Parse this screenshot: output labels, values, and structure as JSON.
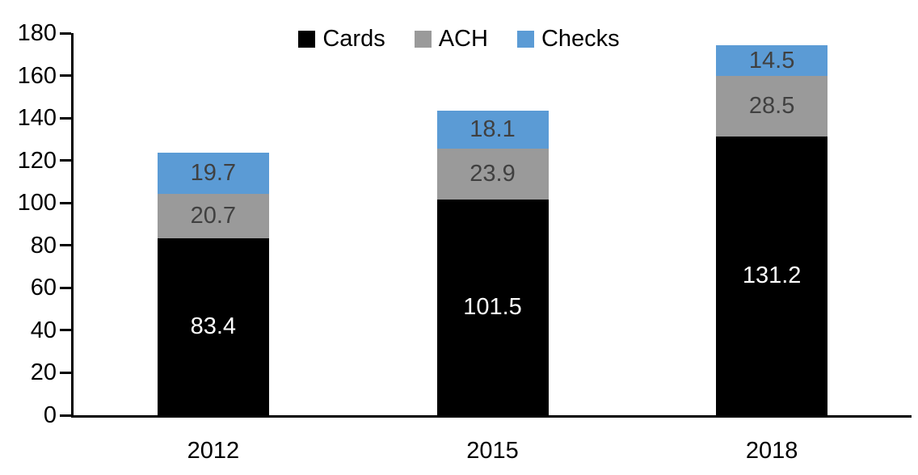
{
  "chart_data": {
    "type": "bar",
    "stacked": true,
    "title": "",
    "categories": [
      "2012",
      "2015",
      "2018"
    ],
    "series": [
      {
        "name": "Cards",
        "color": "#000000",
        "label_color": "#ffffff",
        "values": [
          83.4,
          101.5,
          131.2
        ]
      },
      {
        "name": "ACH",
        "color": "#9a9a9a",
        "label_color": "#404040",
        "values": [
          20.7,
          23.9,
          28.5
        ]
      },
      {
        "name": "Checks",
        "color": "#5b9bd5",
        "label_color": "#404040",
        "values": [
          19.7,
          18.1,
          14.5
        ]
      }
    ],
    "ylim": [
      0,
      180
    ],
    "ytick_step": 20,
    "grid": false,
    "legend_position": "top",
    "axis_color": "#000000",
    "label_decimals": 1
  }
}
